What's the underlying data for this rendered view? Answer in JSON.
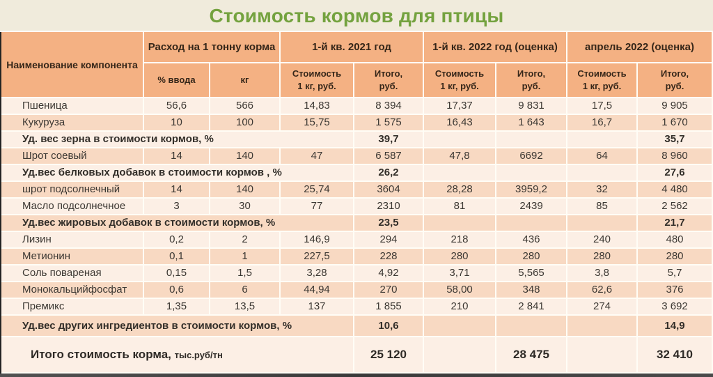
{
  "title": "Стоимость кормов для птицы",
  "colors": {
    "bg_cream": "#F0EBDC",
    "title_green": "#74A23F",
    "orange": "#F4B183",
    "row_light": "#FCEFE5",
    "row_dark": "#F8D9C2",
    "gap_color": "#FFFDF6"
  },
  "chart_data": {
    "type": "table",
    "title": "Стоимость кормов для птицы",
    "header": {
      "component": "Наименование компонента",
      "consumption": "Расход на 1 тонну корма",
      "periods": [
        "1-й кв.  2021 год",
        "1-й кв.  2022 год (оценка)",
        "апрель 2022 (оценка)"
      ],
      "sub": [
        "% ввода",
        "кг",
        "Стоимость\n1 кг,  руб.",
        "Итого,\nруб.",
        "Стоимость\n1 кг,  руб.",
        "Итого,\nруб.",
        "Стоимость\n1 кг,  руб.",
        "Итого,\nруб."
      ]
    },
    "rows": [
      {
        "type": "item",
        "name": "Пшеница",
        "values": [
          "56,6",
          "566",
          "14,83",
          "8 394",
          "17,37",
          "9 831",
          "17,5",
          "9 905"
        ]
      },
      {
        "type": "item",
        "name": "Кукуруза",
        "values": [
          "10",
          "100",
          "15,75",
          "1 575",
          "16,43",
          "1 643",
          "16,7",
          "1 670"
        ]
      },
      {
        "type": "summary",
        "label": "Уд. вес зерна в стоимости кормов, %",
        "values": [
          "39,7",
          "35,7"
        ]
      },
      {
        "type": "item",
        "name": "Шрот соевый",
        "values": [
          "14",
          "140",
          "47",
          "6 587",
          "47,8",
          "6692",
          "64",
          "8 960"
        ]
      },
      {
        "type": "summary",
        "label": "Уд.вес белковых добавок в стоимости кормов , %",
        "values": [
          "26,2",
          "27,6"
        ]
      },
      {
        "type": "item",
        "name": "шрот подсолнечный",
        "values": [
          "14",
          "140",
          "25,74",
          "3604",
          "28,28",
          "3959,2",
          "32",
          "4 480"
        ]
      },
      {
        "type": "item",
        "name": "Масло подсолнечное",
        "values": [
          "3",
          "30",
          "77",
          "2310",
          "81",
          "2439",
          "85",
          "2 562"
        ]
      },
      {
        "type": "summary",
        "label": "Уд.вес жировых добавок в стоимости кормов, %",
        "values": [
          "23,5",
          "21,7"
        ]
      },
      {
        "type": "item",
        "name": "Лизин",
        "values": [
          "0,2",
          "2",
          "146,9",
          "294",
          "218",
          "436",
          "240",
          "480"
        ]
      },
      {
        "type": "item",
        "name": "Метионин",
        "values": [
          "0,1",
          "1",
          "227,5",
          "228",
          "280",
          "280",
          "280",
          "280"
        ]
      },
      {
        "type": "item",
        "name": "Соль повареная",
        "values": [
          "0,15",
          "1,5",
          "3,28",
          "4,92",
          "3,71",
          "5,565",
          "3,8",
          "5,7"
        ]
      },
      {
        "type": "item",
        "name": "Монокальцийфосфат",
        "values": [
          "0,6",
          "6",
          "44,94",
          "270",
          "58,00",
          "348",
          "62,6",
          "376"
        ]
      },
      {
        "type": "item",
        "name": "Премикс",
        "values": [
          "1,35",
          "13,5",
          "137",
          "1 855",
          "210",
          "2 841",
          "274",
          "3 692"
        ]
      },
      {
        "type": "summary",
        "tall": true,
        "label": "Уд.вес других ингредиентов в стоимости кормов, %",
        "values": [
          "10,6",
          "14,9"
        ]
      }
    ],
    "total": {
      "label": "Итого стоимость  корма,",
      "unit": "тыс.руб/тн",
      "values": [
        "25 120",
        "28 475",
        "32 410"
      ]
    }
  }
}
